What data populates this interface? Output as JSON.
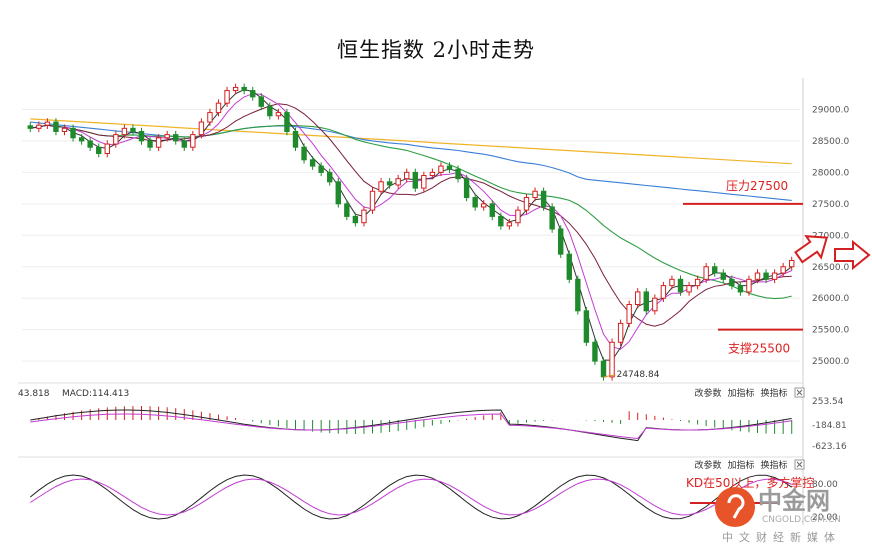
{
  "title": "恒生指数 2小时走势",
  "chart_data": {
    "type": "candlestick",
    "y_ticks": [
      "29000.0",
      "28500.0",
      "28000.0",
      "27500.0",
      "27000.0",
      "26500.0",
      "26000.0",
      "25500.0",
      "25000.0"
    ],
    "ylim": [
      24700,
      29500
    ],
    "close": [
      28700,
      28750,
      28800,
      28650,
      28700,
      28550,
      28500,
      28400,
      28300,
      28450,
      28600,
      28700,
      28650,
      28500,
      28400,
      28550,
      28600,
      28500,
      28400,
      28600,
      28800,
      28950,
      29100,
      29300,
      29350,
      29300,
      29200,
      29050,
      28900,
      28950,
      28650,
      28400,
      28200,
      28100,
      28000,
      27850,
      27500,
      27300,
      27200,
      27400,
      27700,
      27850,
      27800,
      27900,
      28000,
      27750,
      27950,
      28000,
      28100,
      28050,
      27900,
      27600,
      27450,
      27500,
      27300,
      27150,
      27200,
      27400,
      27600,
      27700,
      27450,
      27100,
      26700,
      26300,
      25800,
      25300,
      25000,
      24750,
      25300,
      25600,
      25900,
      26100,
      25800,
      26000,
      26200,
      26300,
      26100,
      26200,
      26300,
      26500,
      26400,
      26300,
      26200,
      26100,
      26300,
      26400,
      26300,
      26400,
      26500,
      26600
    ],
    "annotations": {
      "resistance": "压力27500",
      "support": "支撑25500",
      "low": "24748.84",
      "kd": "KD在50以上，多方掌控"
    },
    "resistance": 27500,
    "support": 25500,
    "low": 24748.84,
    "macd": {
      "label": "MACD:114.413",
      "prefix": "43.818",
      "ticks": [
        "253.54",
        "-184.81",
        "-623.16"
      ]
    },
    "kd": {
      "ticks": [
        "80.00",
        "20.00"
      ]
    }
  },
  "panel_buttons": [
    "改参数",
    "加指标",
    "换指标"
  ],
  "watermark": {
    "brand": "中金网",
    "site": "CNGOLD.COM.CN",
    "tagline": "中文财经新媒体"
  }
}
